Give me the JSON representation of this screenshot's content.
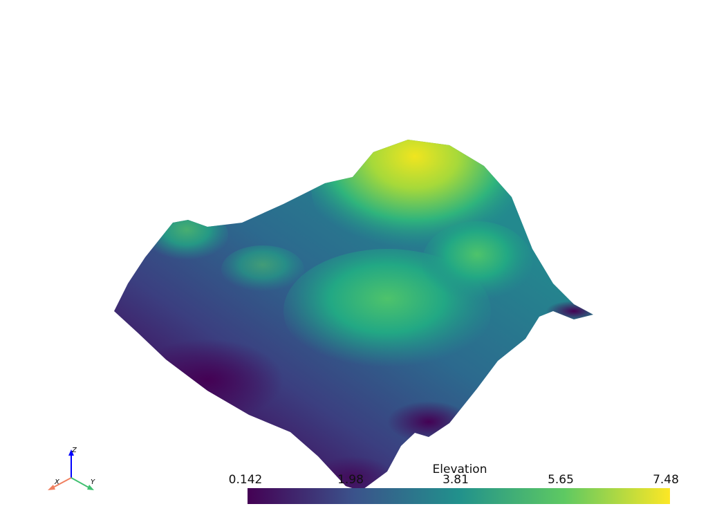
{
  "scalar_bar": {
    "title": "Elevation",
    "labels": [
      "0.142",
      "1.98",
      "3.81",
      "5.65",
      "7.48"
    ],
    "colormap": "viridis",
    "colors": [
      "#440154",
      "#3b528b",
      "#21918c",
      "#5ec962",
      "#fde725"
    ]
  },
  "axes_widget": {
    "x_label": "X",
    "y_label": "Y",
    "z_label": "Z",
    "x_color": "#f08060",
    "y_color": "#40c070",
    "z_color": "#0000ff"
  }
}
